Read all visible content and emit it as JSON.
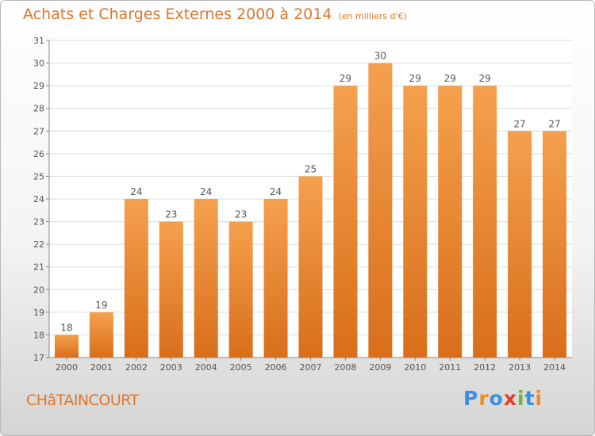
{
  "title": "Achats et Charges Externes 2000 à 2014",
  "subtitle": "(en milliers d'€)",
  "commune": "CHâTAINCOURT",
  "logo": {
    "text": "Proxiti",
    "letters": [
      {
        "ch": "P",
        "color": "#3c8ede"
      },
      {
        "ch": "r",
        "color": "#f28b1d"
      },
      {
        "ch": "o",
        "color": "#3c8ede"
      },
      {
        "ch": "x",
        "color": "#e43b2b"
      },
      {
        "ch": "i",
        "color": "#6bb83a"
      },
      {
        "ch": "t",
        "color": "#3c8ede"
      },
      {
        "ch": "i",
        "color": "#f28b1d"
      }
    ]
  },
  "colors": {
    "accent": "#e0772a",
    "bar_top": "#f5a04e",
    "bar_bottom": "#d86e1a",
    "grid": "#dcdcdc"
  },
  "chart_data": {
    "type": "bar",
    "title": "Achats et Charges Externes 2000 à 2014",
    "subtitle": "(en milliers d'€)",
    "categories": [
      "2000",
      "2001",
      "2002",
      "2003",
      "2004",
      "2005",
      "2006",
      "2007",
      "2008",
      "2009",
      "2010",
      "2011",
      "2012",
      "2013",
      "2014"
    ],
    "values": [
      18,
      19,
      24,
      23,
      24,
      23,
      24,
      25,
      29,
      30,
      29,
      29,
      29,
      27,
      27
    ],
    "ylim": [
      17,
      31
    ],
    "yticks": [
      17,
      18,
      19,
      20,
      21,
      22,
      23,
      24,
      25,
      26,
      27,
      28,
      29,
      30,
      31
    ],
    "grid": true,
    "data_labels": true
  }
}
